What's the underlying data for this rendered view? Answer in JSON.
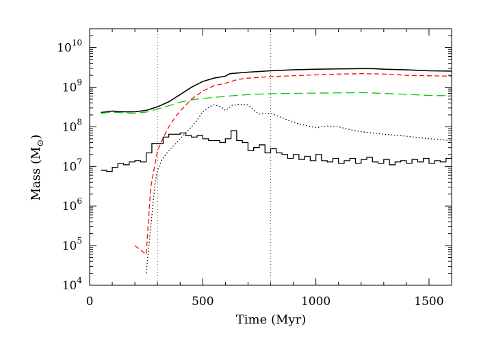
{
  "chart_data": {
    "type": "line",
    "xlabel": "Time (Myr)",
    "ylabel": {
      "base": "Mass (M",
      "subscript": "⊙",
      "close": ")"
    },
    "xlim": [
      0,
      1600
    ],
    "ylim": [
      10000,
      30000000000
    ],
    "yscale": "log",
    "grid": false,
    "x_ticks": [
      {
        "value": 0,
        "label": "0"
      },
      {
        "value": 500,
        "label": "500"
      },
      {
        "value": 1000,
        "label": "1000"
      },
      {
        "value": 1500,
        "label": "1500"
      }
    ],
    "y_ticks": [
      {
        "value": 10000,
        "base": "10",
        "exp": "4"
      },
      {
        "value": 100000,
        "base": "10",
        "exp": "5"
      },
      {
        "value": 1000000,
        "base": "10",
        "exp": "6"
      },
      {
        "value": 10000000,
        "base": "10",
        "exp": "7"
      },
      {
        "value": 100000000,
        "base": "10",
        "exp": "8"
      },
      {
        "value": 1000000000,
        "base": "10",
        "exp": "9"
      },
      {
        "value": 10000000000,
        "base": "10",
        "exp": "10"
      }
    ],
    "vertical_lines": [
      300,
      800
    ],
    "series": [
      {
        "style": "solid",
        "color": "#000000",
        "step": false,
        "points": [
          [
            50,
            230000000.0
          ],
          [
            100,
            250000000.0
          ],
          [
            150,
            240000000.0
          ],
          [
            200,
            240000000.0
          ],
          [
            250,
            260000000.0
          ],
          [
            300,
            320000000.0
          ],
          [
            350,
            430000000.0
          ],
          [
            400,
            650000000.0
          ],
          [
            450,
            1000000000.0
          ],
          [
            500,
            1400000000.0
          ],
          [
            550,
            1700000000.0
          ],
          [
            600,
            1900000000.0
          ],
          [
            620,
            2200000000.0
          ],
          [
            700,
            2400000000.0
          ],
          [
            800,
            2600000000.0
          ],
          [
            900,
            2750000000.0
          ],
          [
            1000,
            2850000000.0
          ],
          [
            1100,
            2900000000.0
          ],
          [
            1200,
            2950000000.0
          ],
          [
            1250,
            2950000000.0
          ],
          [
            1300,
            2850000000.0
          ],
          [
            1400,
            2750000000.0
          ],
          [
            1500,
            2600000000.0
          ],
          [
            1600,
            2550000000.0
          ]
        ]
      },
      {
        "style": "dashed",
        "color": "#ff0000",
        "step": false,
        "points": [
          [
            200,
            100000.0
          ],
          [
            250,
            60000.0
          ],
          [
            270,
            3000000.0
          ],
          [
            300,
            25000000.0
          ],
          [
            330,
            60000000.0
          ],
          [
            350,
            100000000.0
          ],
          [
            380,
            180000000.0
          ],
          [
            400,
            250000000.0
          ],
          [
            450,
            500000000.0
          ],
          [
            500,
            800000000.0
          ],
          [
            550,
            1100000000.0
          ],
          [
            600,
            1250000000.0
          ],
          [
            650,
            1550000000.0
          ],
          [
            700,
            1700000000.0
          ],
          [
            800,
            1850000000.0
          ],
          [
            900,
            1950000000.0
          ],
          [
            1000,
            2050000000.0
          ],
          [
            1100,
            2150000000.0
          ],
          [
            1200,
            2200000000.0
          ],
          [
            1300,
            2150000000.0
          ],
          [
            1400,
            2000000000.0
          ],
          [
            1500,
            1950000000.0
          ],
          [
            1600,
            1900000000.0
          ]
        ]
      },
      {
        "style": "longdash",
        "color": "#00cc00",
        "step": false,
        "points": [
          [
            50,
            220000000.0
          ],
          [
            100,
            235000000.0
          ],
          [
            150,
            225000000.0
          ],
          [
            200,
            220000000.0
          ],
          [
            250,
            235000000.0
          ],
          [
            300,
            280000000.0
          ],
          [
            350,
            340000000.0
          ],
          [
            400,
            420000000.0
          ],
          [
            450,
            480000000.0
          ],
          [
            500,
            520000000.0
          ],
          [
            600,
            590000000.0
          ],
          [
            700,
            650000000.0
          ],
          [
            800,
            690000000.0
          ],
          [
            900,
            700000000.0
          ],
          [
            1000,
            710000000.0
          ],
          [
            1100,
            720000000.0
          ],
          [
            1200,
            730000000.0
          ],
          [
            1300,
            700000000.0
          ],
          [
            1400,
            660000000.0
          ],
          [
            1500,
            620000000.0
          ],
          [
            1600,
            610000000.0
          ]
        ]
      },
      {
        "style": "dotted",
        "color": "#000000",
        "step": false,
        "points": [
          [
            250,
            20000.0
          ],
          [
            270,
            300000.0
          ],
          [
            290,
            4000000.0
          ],
          [
            300,
            8000000.0
          ],
          [
            320,
            15000000.0
          ],
          [
            350,
            25000000.0
          ],
          [
            400,
            50000000.0
          ],
          [
            450,
            100000000.0
          ],
          [
            480,
            160000000.0
          ],
          [
            500,
            240000000.0
          ],
          [
            530,
            320000000.0
          ],
          [
            550,
            360000000.0
          ],
          [
            580,
            320000000.0
          ],
          [
            600,
            260000000.0
          ],
          [
            630,
            350000000.0
          ],
          [
            660,
            370000000.0
          ],
          [
            700,
            360000000.0
          ],
          [
            730,
            250000000.0
          ],
          [
            750,
            210000000.0
          ],
          [
            800,
            220000000.0
          ],
          [
            850,
            170000000.0
          ],
          [
            900,
            130000000.0
          ],
          [
            950,
            110000000.0
          ],
          [
            1000,
            95000000.0
          ],
          [
            1050,
            105000000.0
          ],
          [
            1100,
            100000000.0
          ],
          [
            1150,
            85000000.0
          ],
          [
            1200,
            75000000.0
          ],
          [
            1300,
            65000000.0
          ],
          [
            1400,
            58000000.0
          ],
          [
            1500,
            50000000.0
          ],
          [
            1600,
            45000000.0
          ]
        ]
      },
      {
        "style": "solid",
        "color": "#000000",
        "step": true,
        "points": [
          [
            50,
            8000000.0
          ],
          [
            75,
            7500000.0
          ],
          [
            100,
            9500000.0
          ],
          [
            125,
            12000000.0
          ],
          [
            150,
            11000000.0
          ],
          [
            175,
            13000000.0
          ],
          [
            200,
            14000000.0
          ],
          [
            225,
            13000000.0
          ],
          [
            250,
            22000000.0
          ],
          [
            275,
            38000000.0
          ],
          [
            300,
            38000000.0
          ],
          [
            325,
            55000000.0
          ],
          [
            350,
            65000000.0
          ],
          [
            375,
            65000000.0
          ],
          [
            400,
            70000000.0
          ],
          [
            425,
            60000000.0
          ],
          [
            450,
            55000000.0
          ],
          [
            475,
            60000000.0
          ],
          [
            500,
            50000000.0
          ],
          [
            525,
            45000000.0
          ],
          [
            550,
            45000000.0
          ],
          [
            575,
            40000000.0
          ],
          [
            600,
            50000000.0
          ],
          [
            625,
            80000000.0
          ],
          [
            650,
            45000000.0
          ],
          [
            675,
            40000000.0
          ],
          [
            700,
            25000000.0
          ],
          [
            725,
            30000000.0
          ],
          [
            750,
            35000000.0
          ],
          [
            775,
            22000000.0
          ],
          [
            800,
            28000000.0
          ],
          [
            825,
            22000000.0
          ],
          [
            850,
            20000000.0
          ],
          [
            875,
            16000000.0
          ],
          [
            900,
            20000000.0
          ],
          [
            925,
            15000000.0
          ],
          [
            950,
            18000000.0
          ],
          [
            975,
            14000000.0
          ],
          [
            1000,
            20000000.0
          ],
          [
            1025,
            14000000.0
          ],
          [
            1050,
            13000000.0
          ],
          [
            1075,
            16000000.0
          ],
          [
            1100,
            12000000.0
          ],
          [
            1125,
            14000000.0
          ],
          [
            1150,
            16000000.0
          ],
          [
            1175,
            12000000.0
          ],
          [
            1200,
            15000000.0
          ],
          [
            1225,
            17000000.0
          ],
          [
            1250,
            13000000.0
          ],
          [
            1275,
            12000000.0
          ],
          [
            1300,
            15000000.0
          ],
          [
            1325,
            11000000.0
          ],
          [
            1350,
            13000000.0
          ],
          [
            1375,
            14000000.0
          ],
          [
            1400,
            12000000.0
          ],
          [
            1425,
            15000000.0
          ],
          [
            1450,
            13000000.0
          ],
          [
            1475,
            16000000.0
          ],
          [
            1500,
            12000000.0
          ],
          [
            1525,
            14000000.0
          ],
          [
            1550,
            13000000.0
          ],
          [
            1575,
            16000000.0
          ],
          [
            1600,
            18000000.0
          ]
        ]
      }
    ]
  }
}
